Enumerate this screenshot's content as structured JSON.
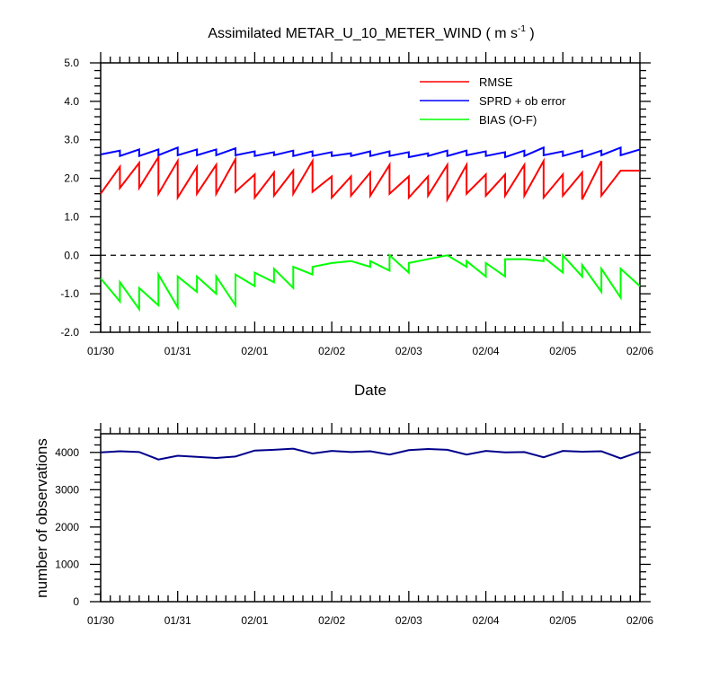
{
  "chart_data": [
    {
      "type": "line",
      "title": "Assimilated METAR_U_10_METER_WIND",
      "title_units": {
        "pre": "( m s",
        "sup": "-1",
        "post": " )"
      },
      "xlabel": "Date",
      "ylabel": "",
      "x_tick_labels": [
        "01/30",
        "01/31",
        "02/01",
        "02/02",
        "02/03",
        "02/04",
        "02/05",
        "02/06"
      ],
      "y_tick_labels": [
        "-2.0",
        "-1.0",
        "0.0",
        "1.0",
        "2.0",
        "3.0",
        "4.0",
        "5.0"
      ],
      "xlim": [
        0,
        7
      ],
      "ylim": [
        -2,
        5
      ],
      "zero_line": {
        "value": 0,
        "style": "dashed"
      },
      "legend": {
        "placement": "top-right",
        "entries": [
          "RMSE",
          "SPRD + ob error",
          "BIAS (O-F)"
        ]
      },
      "series": [
        {
          "name": "RMSE",
          "color": "#ff0000",
          "points": [
            [
              0,
              1.6
            ],
            [
              0.25,
              2.3
            ],
            [
              0.25,
              1.75
            ],
            [
              0.5,
              2.4
            ],
            [
              0.5,
              1.75
            ],
            [
              0.75,
              2.55
            ],
            [
              0.75,
              1.6
            ],
            [
              1,
              2.45
            ],
            [
              1,
              1.5
            ],
            [
              1.25,
              2.3
            ],
            [
              1.25,
              1.6
            ],
            [
              1.5,
              2.35
            ],
            [
              1.5,
              1.6
            ],
            [
              1.75,
              2.5
            ],
            [
              1.75,
              1.65
            ],
            [
              2,
              2.1
            ],
            [
              2,
              1.5
            ],
            [
              2.25,
              2.15
            ],
            [
              2.25,
              1.55
            ],
            [
              2.5,
              2.2
            ],
            [
              2.5,
              1.6
            ],
            [
              2.75,
              2.45
            ],
            [
              2.75,
              1.65
            ],
            [
              3,
              2.05
            ],
            [
              3,
              1.5
            ],
            [
              3.25,
              2.05
            ],
            [
              3.25,
              1.55
            ],
            [
              3.5,
              2.15
            ],
            [
              3.5,
              1.55
            ],
            [
              3.75,
              2.35
            ],
            [
              3.75,
              1.6
            ],
            [
              4,
              2.05
            ],
            [
              4,
              1.5
            ],
            [
              4.25,
              2.05
            ],
            [
              4.25,
              1.55
            ],
            [
              4.5,
              2.35
            ],
            [
              4.5,
              1.45
            ],
            [
              4.75,
              2.35
            ],
            [
              4.75,
              1.6
            ],
            [
              5,
              2.1
            ],
            [
              5,
              1.55
            ],
            [
              5.25,
              2.1
            ],
            [
              5.25,
              1.55
            ],
            [
              5.5,
              2.35
            ],
            [
              5.5,
              1.55
            ],
            [
              5.75,
              2.45
            ],
            [
              5.75,
              1.5
            ],
            [
              6,
              2.1
            ],
            [
              6,
              1.55
            ],
            [
              6.25,
              2.15
            ],
            [
              6.25,
              1.45
            ],
            [
              6.5,
              2.45
            ],
            [
              6.5,
              1.55
            ],
            [
              6.75,
              2.2
            ],
            [
              7,
              2.2
            ]
          ]
        },
        {
          "name": "SPRD + ob error",
          "color": "#0000ff",
          "points": [
            [
              0,
              2.62
            ],
            [
              0.25,
              2.72
            ],
            [
              0.25,
              2.58
            ],
            [
              0.5,
              2.75
            ],
            [
              0.5,
              2.58
            ],
            [
              0.75,
              2.75
            ],
            [
              0.75,
              2.6
            ],
            [
              1,
              2.8
            ],
            [
              1,
              2.6
            ],
            [
              1.25,
              2.75
            ],
            [
              1.25,
              2.6
            ],
            [
              1.5,
              2.75
            ],
            [
              1.5,
              2.6
            ],
            [
              1.75,
              2.78
            ],
            [
              1.75,
              2.6
            ],
            [
              2,
              2.7
            ],
            [
              2,
              2.58
            ],
            [
              2.25,
              2.68
            ],
            [
              2.25,
              2.6
            ],
            [
              2.5,
              2.72
            ],
            [
              2.5,
              2.58
            ],
            [
              2.75,
              2.7
            ],
            [
              2.75,
              2.58
            ],
            [
              3,
              2.68
            ],
            [
              3,
              2.58
            ],
            [
              3.25,
              2.65
            ],
            [
              3.25,
              2.58
            ],
            [
              3.5,
              2.7
            ],
            [
              3.5,
              2.58
            ],
            [
              3.75,
              2.7
            ],
            [
              3.75,
              2.58
            ],
            [
              4,
              2.68
            ],
            [
              4,
              2.55
            ],
            [
              4.25,
              2.65
            ],
            [
              4.25,
              2.58
            ],
            [
              4.5,
              2.72
            ],
            [
              4.5,
              2.58
            ],
            [
              4.75,
              2.72
            ],
            [
              4.75,
              2.6
            ],
            [
              5,
              2.7
            ],
            [
              5,
              2.58
            ],
            [
              5.25,
              2.68
            ],
            [
              5.25,
              2.55
            ],
            [
              5.5,
              2.72
            ],
            [
              5.5,
              2.58
            ],
            [
              5.75,
              2.8
            ],
            [
              5.75,
              2.6
            ],
            [
              6,
              2.7
            ],
            [
              6,
              2.58
            ],
            [
              6.25,
              2.72
            ],
            [
              6.25,
              2.55
            ],
            [
              6.5,
              2.72
            ],
            [
              6.5,
              2.6
            ],
            [
              6.75,
              2.8
            ],
            [
              6.75,
              2.6
            ],
            [
              7,
              2.75
            ]
          ]
        },
        {
          "name": "BIAS (O-F)",
          "color": "#00ff00",
          "points": [
            [
              0,
              -0.6
            ],
            [
              0.25,
              -1.2
            ],
            [
              0.25,
              -0.7
            ],
            [
              0.5,
              -1.4
            ],
            [
              0.5,
              -0.85
            ],
            [
              0.75,
              -1.3
            ],
            [
              0.75,
              -0.5
            ],
            [
              1,
              -1.35
            ],
            [
              1,
              -0.55
            ],
            [
              1.25,
              -0.95
            ],
            [
              1.25,
              -0.55
            ],
            [
              1.5,
              -1.0
            ],
            [
              1.5,
              -0.55
            ],
            [
              1.75,
              -1.3
            ],
            [
              1.75,
              -0.5
            ],
            [
              2,
              -0.8
            ],
            [
              2,
              -0.45
            ],
            [
              2.25,
              -0.7
            ],
            [
              2.25,
              -0.35
            ],
            [
              2.5,
              -0.85
            ],
            [
              2.5,
              -0.3
            ],
            [
              2.75,
              -0.5
            ],
            [
              2.75,
              -0.3
            ],
            [
              3,
              -0.2
            ],
            [
              3.25,
              -0.15
            ],
            [
              3.5,
              -0.3
            ],
            [
              3.5,
              -0.15
            ],
            [
              3.75,
              -0.4
            ],
            [
              3.75,
              0
            ],
            [
              4,
              -0.45
            ],
            [
              4,
              -0.2
            ],
            [
              4.25,
              -0.1
            ],
            [
              4.5,
              0
            ],
            [
              4.75,
              -0.3
            ],
            [
              4.75,
              -0.15
            ],
            [
              5,
              -0.55
            ],
            [
              5,
              -0.2
            ],
            [
              5.25,
              -0.55
            ],
            [
              5.25,
              -0.1
            ],
            [
              5.5,
              -0.1
            ],
            [
              5.75,
              -0.15
            ],
            [
              5.75,
              -0.05
            ],
            [
              6,
              -0.45
            ],
            [
              6,
              0
            ],
            [
              6.25,
              -0.55
            ],
            [
              6.25,
              -0.25
            ],
            [
              6.5,
              -0.95
            ],
            [
              6.5,
              -0.35
            ],
            [
              6.75,
              -1.1
            ],
            [
              6.75,
              -0.35
            ],
            [
              7,
              -0.8
            ]
          ]
        }
      ]
    },
    {
      "type": "line",
      "title": "",
      "xlabel": "",
      "ylabel": "number of observations",
      "x_tick_labels": [
        "01/30",
        "01/31",
        "02/01",
        "02/02",
        "02/03",
        "02/04",
        "02/05",
        "02/06"
      ],
      "y_tick_labels": [
        "0",
        "1000",
        "2000",
        "3000",
        "4000"
      ],
      "xlim": [
        0,
        7
      ],
      "ylim": [
        0,
        4500
      ],
      "series": [
        {
          "name": "observations",
          "color": "#00008b",
          "points": [
            [
              0,
              4000
            ],
            [
              0.25,
              4030
            ],
            [
              0.5,
              4010
            ],
            [
              0.75,
              3810
            ],
            [
              1,
              3910
            ],
            [
              1.25,
              3880
            ],
            [
              1.5,
              3850
            ],
            [
              1.75,
              3890
            ],
            [
              2,
              4050
            ],
            [
              2.25,
              4070
            ],
            [
              2.5,
              4100
            ],
            [
              2.75,
              3970
            ],
            [
              3,
              4040
            ],
            [
              3.25,
              4010
            ],
            [
              3.5,
              4030
            ],
            [
              3.75,
              3940
            ],
            [
              4,
              4060
            ],
            [
              4.25,
              4090
            ],
            [
              4.5,
              4070
            ],
            [
              4.75,
              3940
            ],
            [
              5,
              4040
            ],
            [
              5.25,
              4000
            ],
            [
              5.5,
              4010
            ],
            [
              5.75,
              3870
            ],
            [
              6,
              4040
            ],
            [
              6.25,
              4020
            ],
            [
              6.5,
              4030
            ],
            [
              6.75,
              3840
            ],
            [
              7,
              4020
            ]
          ]
        }
      ]
    }
  ]
}
